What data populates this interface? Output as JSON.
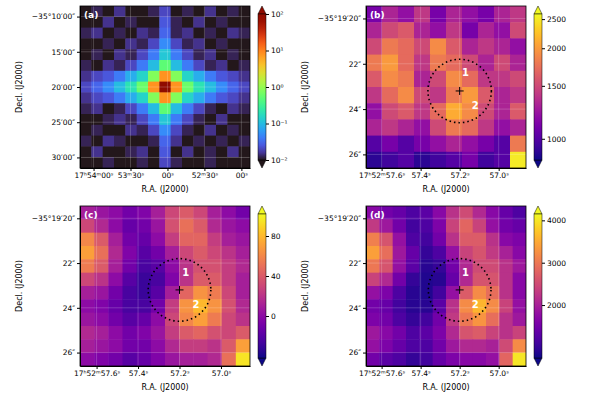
{
  "chart_data": [
    {
      "type": "heatmap",
      "title": "(a)",
      "x_label": "R.A. (J2000)",
      "y_label": "Decl. (J2000)",
      "xlim": [
        3251,
        3113
      ],
      "ylim": [
        8.5,
        31.5
      ],
      "xticks": [
        {
          "value": 3240,
          "label": "17ʰ54ᵐ00ˢ"
        },
        {
          "value": 3210,
          "label": "53ᵐ30ˢ"
        },
        {
          "value": 3180,
          "label": "00ˢ"
        },
        {
          "value": 3150,
          "label": "52ᵐ30ˢ"
        },
        {
          "value": 3120,
          "label": "00ˢ"
        }
      ],
      "yticks": [
        {
          "value": 10,
          "label": "−35°10′00″"
        },
        {
          "value": 15,
          "label": "15′00″"
        },
        {
          "value": 20,
          "label": "20′00″"
        },
        {
          "value": 25,
          "label": "25′00″"
        },
        {
          "value": 30,
          "label": "30′00″"
        }
      ],
      "grid": true,
      "color": "turbo",
      "colorbar": {
        "range": [
          0.01,
          100
        ],
        "log": true,
        "ticks": [
          {
            "value": 0.01,
            "label": "10⁻²"
          },
          {
            "value": 0.1,
            "label": "10⁻¹"
          },
          {
            "value": 1,
            "label": "10⁰"
          },
          {
            "value": 10,
            "label": "10¹"
          },
          {
            "value": 100,
            "label": "10²"
          }
        ]
      },
      "cells": [
        [
          0.008,
          0.012,
          0.01,
          0.015,
          0.008,
          0.01,
          0.012,
          0.02,
          0.01,
          0.012,
          0.008,
          0.015,
          0.01,
          0.012,
          0.008
        ],
        [
          0.01,
          0.008,
          0.015,
          0.01,
          0.012,
          0.008,
          0.01,
          0.025,
          0.012,
          0.008,
          0.015,
          0.01,
          0.012,
          0.008,
          0.01
        ],
        [
          0.012,
          0.015,
          0.008,
          0.012,
          0.01,
          0.015,
          0.012,
          0.03,
          0.012,
          0.015,
          0.01,
          0.012,
          0.008,
          0.015,
          0.012
        ],
        [
          0.008,
          0.01,
          0.012,
          0.008,
          0.015,
          0.012,
          0.02,
          0.05,
          0.02,
          0.012,
          0.015,
          0.008,
          0.012,
          0.01,
          0.008
        ],
        [
          0.01,
          0.012,
          0.008,
          0.015,
          0.012,
          0.02,
          0.04,
          0.12,
          0.04,
          0.02,
          0.012,
          0.015,
          0.008,
          0.012,
          0.01
        ],
        [
          0.012,
          0.008,
          0.015,
          0.012,
          0.02,
          0.04,
          0.1,
          0.5,
          0.1,
          0.04,
          0.02,
          0.012,
          0.015,
          0.008,
          0.012
        ],
        [
          0.015,
          0.02,
          0.025,
          0.04,
          0.08,
          0.15,
          0.8,
          8,
          0.8,
          0.15,
          0.08,
          0.04,
          0.025,
          0.02,
          0.015
        ],
        [
          0.02,
          0.03,
          0.05,
          0.1,
          0.2,
          0.6,
          8,
          100,
          8,
          0.6,
          0.2,
          0.1,
          0.05,
          0.03,
          0.02
        ],
        [
          0.015,
          0.02,
          0.025,
          0.04,
          0.08,
          0.15,
          0.8,
          8,
          0.8,
          0.15,
          0.08,
          0.04,
          0.025,
          0.02,
          0.015
        ],
        [
          0.012,
          0.015,
          0.008,
          0.012,
          0.02,
          0.04,
          0.1,
          0.5,
          0.1,
          0.04,
          0.02,
          0.012,
          0.008,
          0.015,
          0.012
        ],
        [
          0.01,
          0.008,
          0.012,
          0.015,
          0.012,
          0.02,
          0.04,
          0.12,
          0.04,
          0.02,
          0.012,
          0.008,
          0.015,
          0.01,
          0.01
        ],
        [
          0.008,
          0.012,
          0.01,
          0.008,
          0.015,
          0.012,
          0.02,
          0.05,
          0.02,
          0.012,
          0.01,
          0.015,
          0.008,
          0.012,
          0.008
        ],
        [
          0.012,
          0.01,
          0.015,
          0.012,
          0.008,
          0.01,
          0.012,
          0.03,
          0.015,
          0.01,
          0.012,
          0.008,
          0.012,
          0.01,
          0.012
        ],
        [
          0.01,
          0.015,
          0.008,
          0.01,
          0.012,
          0.015,
          0.01,
          0.025,
          0.01,
          0.015,
          0.008,
          0.012,
          0.01,
          0.015,
          0.01
        ],
        [
          0.008,
          0.01,
          0.012,
          0.008,
          0.01,
          0.012,
          0.008,
          0.02,
          0.012,
          0.008,
          0.01,
          0.012,
          0.008,
          0.01,
          0.008
        ]
      ]
    },
    {
      "type": "heatmap",
      "title": "(b)",
      "x_label": "R.A. (J2000)",
      "y_label": "Decl. (J2000)",
      "xlim": [
        57.68,
        56.86
      ],
      "ylim": [
        19.45,
        26.6
      ],
      "xticks": [
        {
          "value": 57.6,
          "label": "17ʰ52ᵐ57.6ˢ"
        },
        {
          "value": 57.4,
          "label": "57.4ˢ"
        },
        {
          "value": 57.2,
          "label": "57.2ˢ"
        },
        {
          "value": 57.0,
          "label": "57.0ˢ"
        }
      ],
      "yticks": [
        {
          "value": 20,
          "label": "−35°19′20″"
        },
        {
          "value": 22,
          "label": "22″"
        },
        {
          "value": 24,
          "label": "24″"
        },
        {
          "value": 26,
          "label": "26″"
        }
      ],
      "grid": true,
      "color": "plasma",
      "colorbar": {
        "range": [
          850,
          2600
        ],
        "log": true,
        "ticks": [
          1000,
          1500,
          2000,
          2500
        ]
      },
      "region": {
        "x": 57.2,
        "y": 23.2,
        "radius": 1.4
      },
      "annotations": [
        {
          "text": "1",
          "x": 57.17,
          "y": 22.4
        },
        {
          "text": "2",
          "x": 57.12,
          "y": 23.85
        }
      ],
      "cells": [
        [
          1100,
          1300,
          1200,
          1400,
          1100,
          1300,
          1200,
          1100,
          1300,
          1400
        ],
        [
          1300,
          1500,
          1600,
          1300,
          1200,
          1400,
          1100,
          1300,
          1200,
          1500
        ],
        [
          1500,
          1800,
          1700,
          1500,
          1900,
          1600,
          1300,
          1400,
          1300,
          1200
        ],
        [
          1800,
          2000,
          1700,
          1400,
          1800,
          1700,
          1500,
          1300,
          1500,
          1300
        ],
        [
          1600,
          1900,
          1800,
          1300,
          1500,
          1900,
          1700,
          1400,
          1400,
          1500
        ],
        [
          1400,
          1700,
          1900,
          1500,
          1400,
          1800,
          2000,
          1600,
          1300,
          1400
        ],
        [
          1200,
          1500,
          1600,
          1400,
          1700,
          2100,
          1900,
          1500,
          1300,
          1600
        ],
        [
          1300,
          1400,
          1300,
          1200,
          1500,
          1800,
          1700,
          1400,
          1200,
          1300
        ],
        [
          1000,
          1100,
          1000,
          1100,
          1200,
          1300,
          1200,
          1100,
          1000,
          1800
        ],
        [
          900,
          950,
          1000,
          900,
          950,
          1000,
          1100,
          950,
          1000,
          2500
        ]
      ]
    },
    {
      "type": "heatmap",
      "title": "(c)",
      "x_label": "R.A. (J2000)",
      "y_label": "Decl. (J2000)",
      "xlim": [
        57.68,
        56.86
      ],
      "ylim": [
        19.45,
        26.6
      ],
      "xticks": [
        {
          "value": 57.6,
          "label": "17ʰ52ᵐ57.6ˢ"
        },
        {
          "value": 57.4,
          "label": "57.4ˢ"
        },
        {
          "value": 57.2,
          "label": "57.2ˢ"
        },
        {
          "value": 57.0,
          "label": "57.0ˢ"
        }
      ],
      "yticks": [
        {
          "value": 20,
          "label": "−35°19′20″"
        },
        {
          "value": 22,
          "label": "22″"
        },
        {
          "value": 24,
          "label": "24″"
        },
        {
          "value": 26,
          "label": "26″"
        }
      ],
      "grid": true,
      "color": "plasma",
      "colorbar": {
        "range": [
          -42,
          102
        ],
        "ticks": [
          0,
          40,
          80
        ]
      },
      "region": {
        "x": 57.2,
        "y": 23.2,
        "radius": 1.4
      },
      "annotations": [
        {
          "text": "1",
          "x": 57.17,
          "y": 22.4
        },
        {
          "text": "2",
          "x": 57.12,
          "y": 23.85
        }
      ],
      "cells": [
        [
          10,
          5,
          0,
          -10,
          -5,
          10,
          30,
          40,
          30,
          10,
          0,
          -10
        ],
        [
          30,
          15,
          0,
          -15,
          -10,
          5,
          35,
          50,
          40,
          15,
          5,
          0
        ],
        [
          60,
          40,
          10,
          -10,
          -15,
          0,
          25,
          45,
          45,
          25,
          10,
          5
        ],
        [
          70,
          50,
          15,
          -5,
          -20,
          -10,
          10,
          30,
          40,
          30,
          20,
          10
        ],
        [
          55,
          40,
          10,
          -10,
          -25,
          -20,
          0,
          20,
          35,
          35,
          25,
          15
        ],
        [
          30,
          20,
          0,
          -20,
          -30,
          -25,
          -5,
          20,
          40,
          40,
          25,
          10
        ],
        [
          10,
          5,
          -10,
          -25,
          -30,
          -20,
          10,
          45,
          65,
          55,
          30,
          10
        ],
        [
          0,
          -5,
          -15,
          -25,
          -25,
          -10,
          25,
          65,
          80,
          65,
          35,
          15
        ],
        [
          5,
          0,
          -10,
          -20,
          -15,
          0,
          30,
          60,
          70,
          55,
          30,
          20
        ],
        [
          15,
          10,
          0,
          -10,
          -5,
          5,
          25,
          40,
          45,
          35,
          30,
          40
        ],
        [
          10,
          5,
          0,
          -10,
          -10,
          0,
          15,
          25,
          25,
          20,
          40,
          70
        ],
        [
          0,
          -5,
          -10,
          -20,
          -15,
          -5,
          5,
          10,
          10,
          15,
          50,
          95
        ]
      ]
    },
    {
      "type": "heatmap",
      "title": "(d)",
      "x_label": "R.A. (J2000)",
      "y_label": "Decl. (J2000)",
      "xlim": [
        57.68,
        56.86
      ],
      "ylim": [
        19.45,
        26.6
      ],
      "xticks": [
        {
          "value": 57.6,
          "label": "17ʰ52ᵐ57.6ˢ"
        },
        {
          "value": 57.4,
          "label": "57.4ˢ"
        },
        {
          "value": 57.2,
          "label": "57.2ˢ"
        },
        {
          "value": 57.0,
          "label": "57.0ˢ"
        }
      ],
      "yticks": [
        {
          "value": 20,
          "label": "−35°19′20″"
        },
        {
          "value": 22,
          "label": "22″"
        },
        {
          "value": 24,
          "label": "24″"
        },
        {
          "value": 26,
          "label": "26″"
        }
      ],
      "grid": true,
      "color": "plasma",
      "colorbar": {
        "range": [
          750,
          4150
        ],
        "ticks": [
          2000,
          3000,
          4000
        ]
      },
      "region": {
        "x": 57.2,
        "y": 23.2,
        "radius": 1.4
      },
      "annotations": [
        {
          "text": "1",
          "x": 57.17,
          "y": 22.4
        },
        {
          "text": "2",
          "x": 57.12,
          "y": 23.85
        }
      ],
      "cells": [
        [
          1700,
          1500,
          1400,
          1200,
          1300,
          1700,
          2200,
          2500,
          2100,
          1700,
          1400,
          1200
        ],
        [
          2300,
          1900,
          1500,
          1100,
          1200,
          1600,
          2400,
          2800,
          2400,
          1800,
          1500,
          1400
        ],
        [
          3100,
          2600,
          1800,
          1200,
          1100,
          1500,
          2200,
          2700,
          2700,
          2200,
          1700,
          1600
        ],
        [
          3400,
          2900,
          1900,
          1400,
          1000,
          1200,
          1800,
          2400,
          2600,
          2300,
          2000,
          1700
        ],
        [
          3000,
          2600,
          1800,
          1300,
          900,
          1000,
          1500,
          2100,
          2500,
          2500,
          2200,
          1900
        ],
        [
          2400,
          2100,
          1500,
          1000,
          850,
          900,
          1400,
          2100,
          2600,
          2600,
          2200,
          1700
        ],
        [
          1800,
          1600,
          1200,
          900,
          850,
          1100,
          1800,
          2700,
          3200,
          2900,
          2200,
          1700
        ],
        [
          1500,
          1400,
          1100,
          900,
          900,
          1300,
          2200,
          3200,
          3600,
          3200,
          2400,
          1800
        ],
        [
          1600,
          1500,
          1200,
          1000,
          1100,
          1500,
          2300,
          3000,
          3300,
          2900,
          2200,
          1900
        ],
        [
          1900,
          1700,
          1500,
          1200,
          1300,
          1600,
          2100,
          2600,
          2700,
          2400,
          2200,
          2400
        ],
        [
          1800,
          1600,
          1400,
          1200,
          1200,
          1500,
          1900,
          2100,
          2100,
          2000,
          2500,
          3200
        ],
        [
          1500,
          1300,
          1200,
          1000,
          1100,
          1400,
          1600,
          1700,
          1700,
          1800,
          2800,
          4000
        ]
      ]
    }
  ]
}
